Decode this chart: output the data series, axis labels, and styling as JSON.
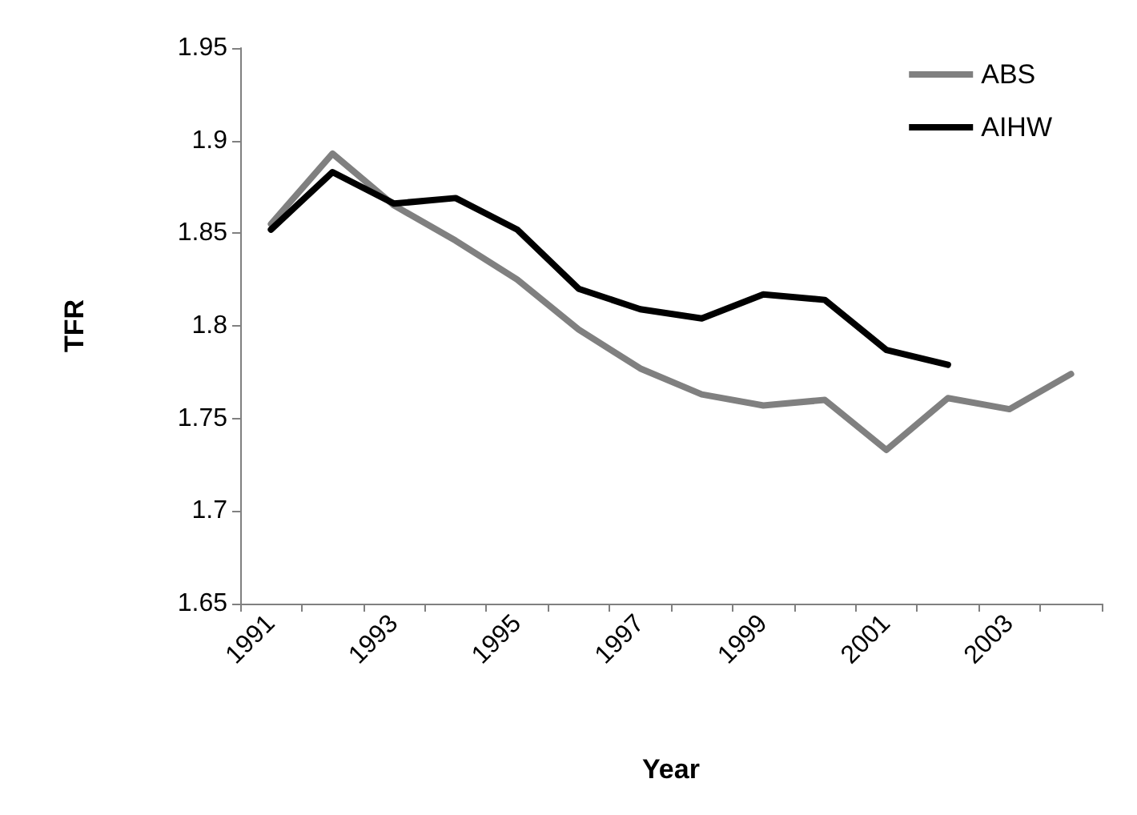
{
  "chart_data": {
    "type": "line",
    "xlabel": "Year",
    "ylabel": "TFR",
    "categories": [
      "1991",
      null,
      "1993",
      null,
      "1995",
      null,
      "1997",
      null,
      "1999",
      null,
      "2001",
      null,
      "2003",
      null
    ],
    "series": [
      {
        "name": "ABS",
        "color": "#808080",
        "values": [
          1.855,
          1.893,
          1.865,
          1.846,
          1.825,
          1.798,
          1.777,
          1.763,
          1.757,
          1.76,
          1.733,
          1.761,
          1.755,
          1.774
        ]
      },
      {
        "name": "AIHW",
        "color": "#000000",
        "values": [
          1.852,
          1.883,
          1.866,
          1.869,
          1.852,
          1.82,
          1.809,
          1.804,
          1.817,
          1.814,
          1.787,
          1.779,
          null,
          null
        ]
      }
    ],
    "ylim": [
      1.65,
      1.95
    ],
    "yticks": [
      1.65,
      1.7,
      1.75,
      1.8,
      1.85,
      1.9,
      1.95
    ],
    "grid": false,
    "legend": "top right",
    "marker": "none",
    "line_style": "solid"
  }
}
